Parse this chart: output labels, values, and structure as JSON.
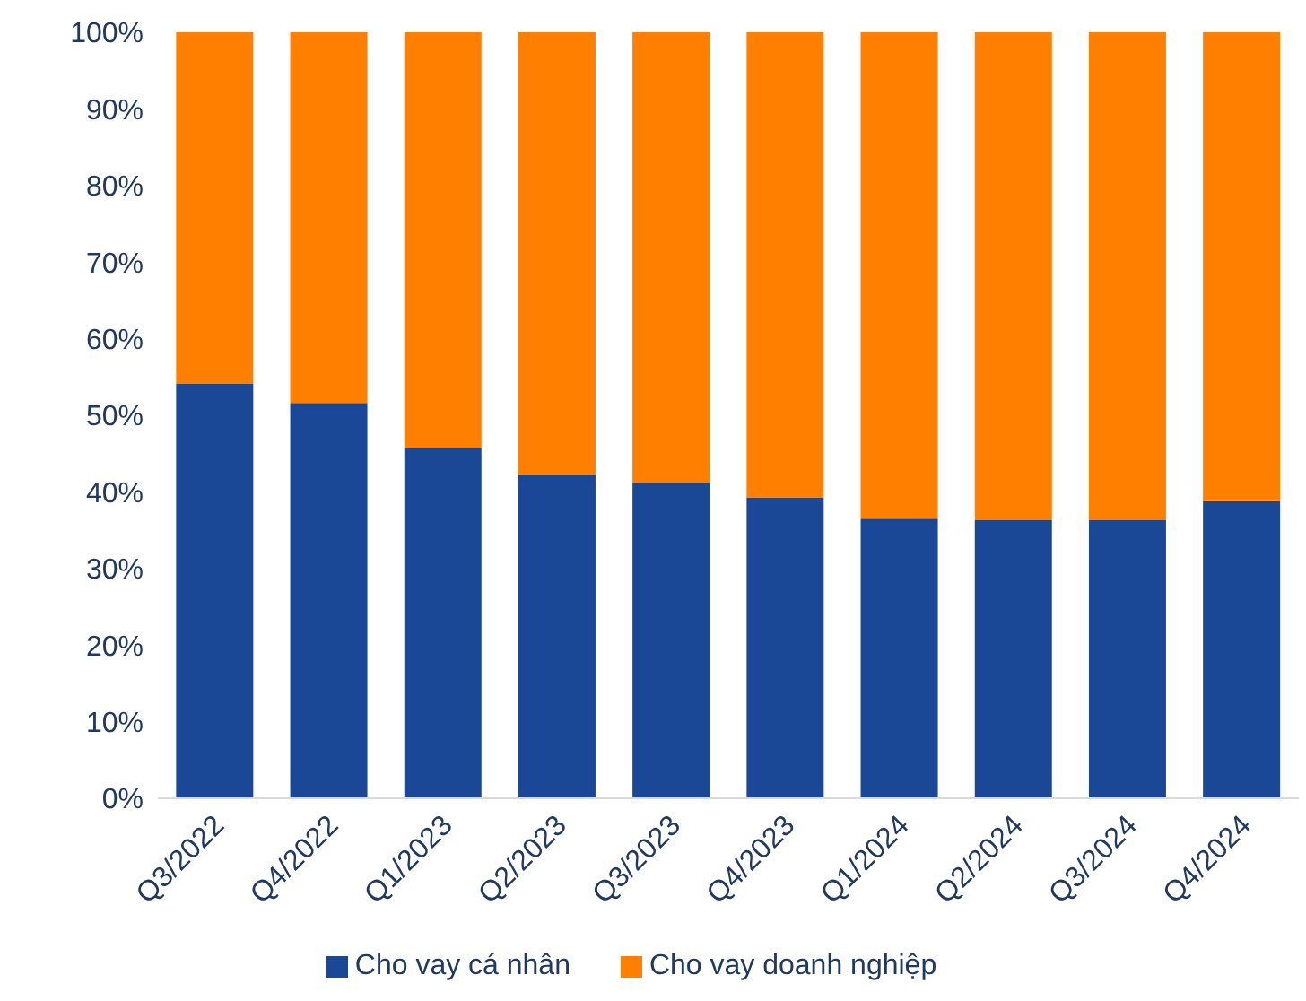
{
  "chart_data": {
    "type": "bar",
    "stacked": true,
    "categories": [
      "Q3/2022",
      "Q4/2022",
      "Q1/2023",
      "Q2/2023",
      "Q3/2023",
      "Q4/2023",
      "Q1/2024",
      "Q2/2024",
      "Q3/2024",
      "Q4/2024"
    ],
    "series": [
      {
        "name": "Cho vay cá nhân",
        "color": "#1a4796",
        "values": [
          54.1,
          51.6,
          45.7,
          42.2,
          41.2,
          39.3,
          36.5,
          36.3,
          36.3,
          38.8
        ]
      },
      {
        "name": "Cho vay doanh nghiệp",
        "color": "#ff7f00",
        "values": [
          45.9,
          48.4,
          54.3,
          57.8,
          58.8,
          60.7,
          63.5,
          63.7,
          63.7,
          61.2
        ]
      }
    ],
    "ylim": [
      0,
      100
    ],
    "yticks": [
      {
        "value": 0,
        "label": "0%"
      },
      {
        "value": 10,
        "label": "10%"
      },
      {
        "value": 20,
        "label": "20%"
      },
      {
        "value": 30,
        "label": "30%"
      },
      {
        "value": 40,
        "label": "40%"
      },
      {
        "value": 50,
        "label": "50%"
      },
      {
        "value": 60,
        "label": "60%"
      },
      {
        "value": 70,
        "label": "70%"
      },
      {
        "value": 80,
        "label": "80%"
      },
      {
        "value": 90,
        "label": "90%"
      },
      {
        "value": 100,
        "label": "100%"
      }
    ],
    "legend": "bottom"
  }
}
